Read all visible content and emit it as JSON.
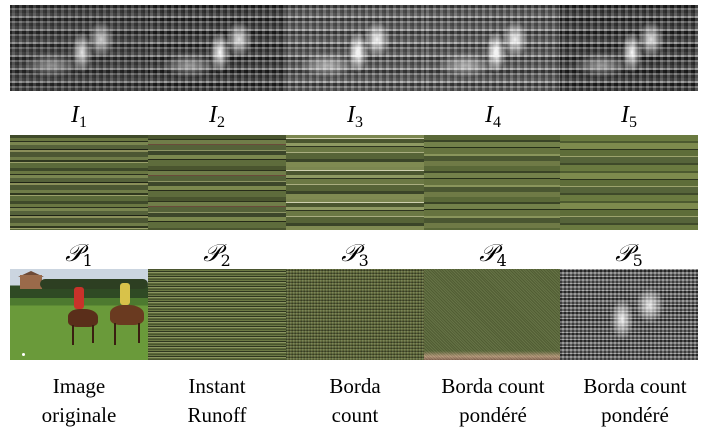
{
  "row1_labels": [
    {
      "main": "I",
      "sub": "1"
    },
    {
      "main": "I",
      "sub": "2"
    },
    {
      "main": "I",
      "sub": "3"
    },
    {
      "main": "I",
      "sub": "4"
    },
    {
      "main": "I",
      "sub": "5"
    }
  ],
  "row2_labels": [
    {
      "main": "𝒫",
      "sub": "1"
    },
    {
      "main": "𝒫",
      "sub": "2"
    },
    {
      "main": "𝒫",
      "sub": "3"
    },
    {
      "main": "𝒫",
      "sub": "4"
    },
    {
      "main": "𝒫",
      "sub": "5"
    }
  ],
  "captions": [
    {
      "line1": "Image",
      "line2": "originale"
    },
    {
      "line1": "Instant",
      "line2": "Runoff"
    },
    {
      "line1": "Borda",
      "line2": "count"
    },
    {
      "line1": "Borda count",
      "line2": "pondéré"
    },
    {
      "line1": "Borda count",
      "line2": "pondéré"
    }
  ],
  "colors": {
    "field_green": "#6a9a3a",
    "strip_olive": "#5b6a3a"
  }
}
